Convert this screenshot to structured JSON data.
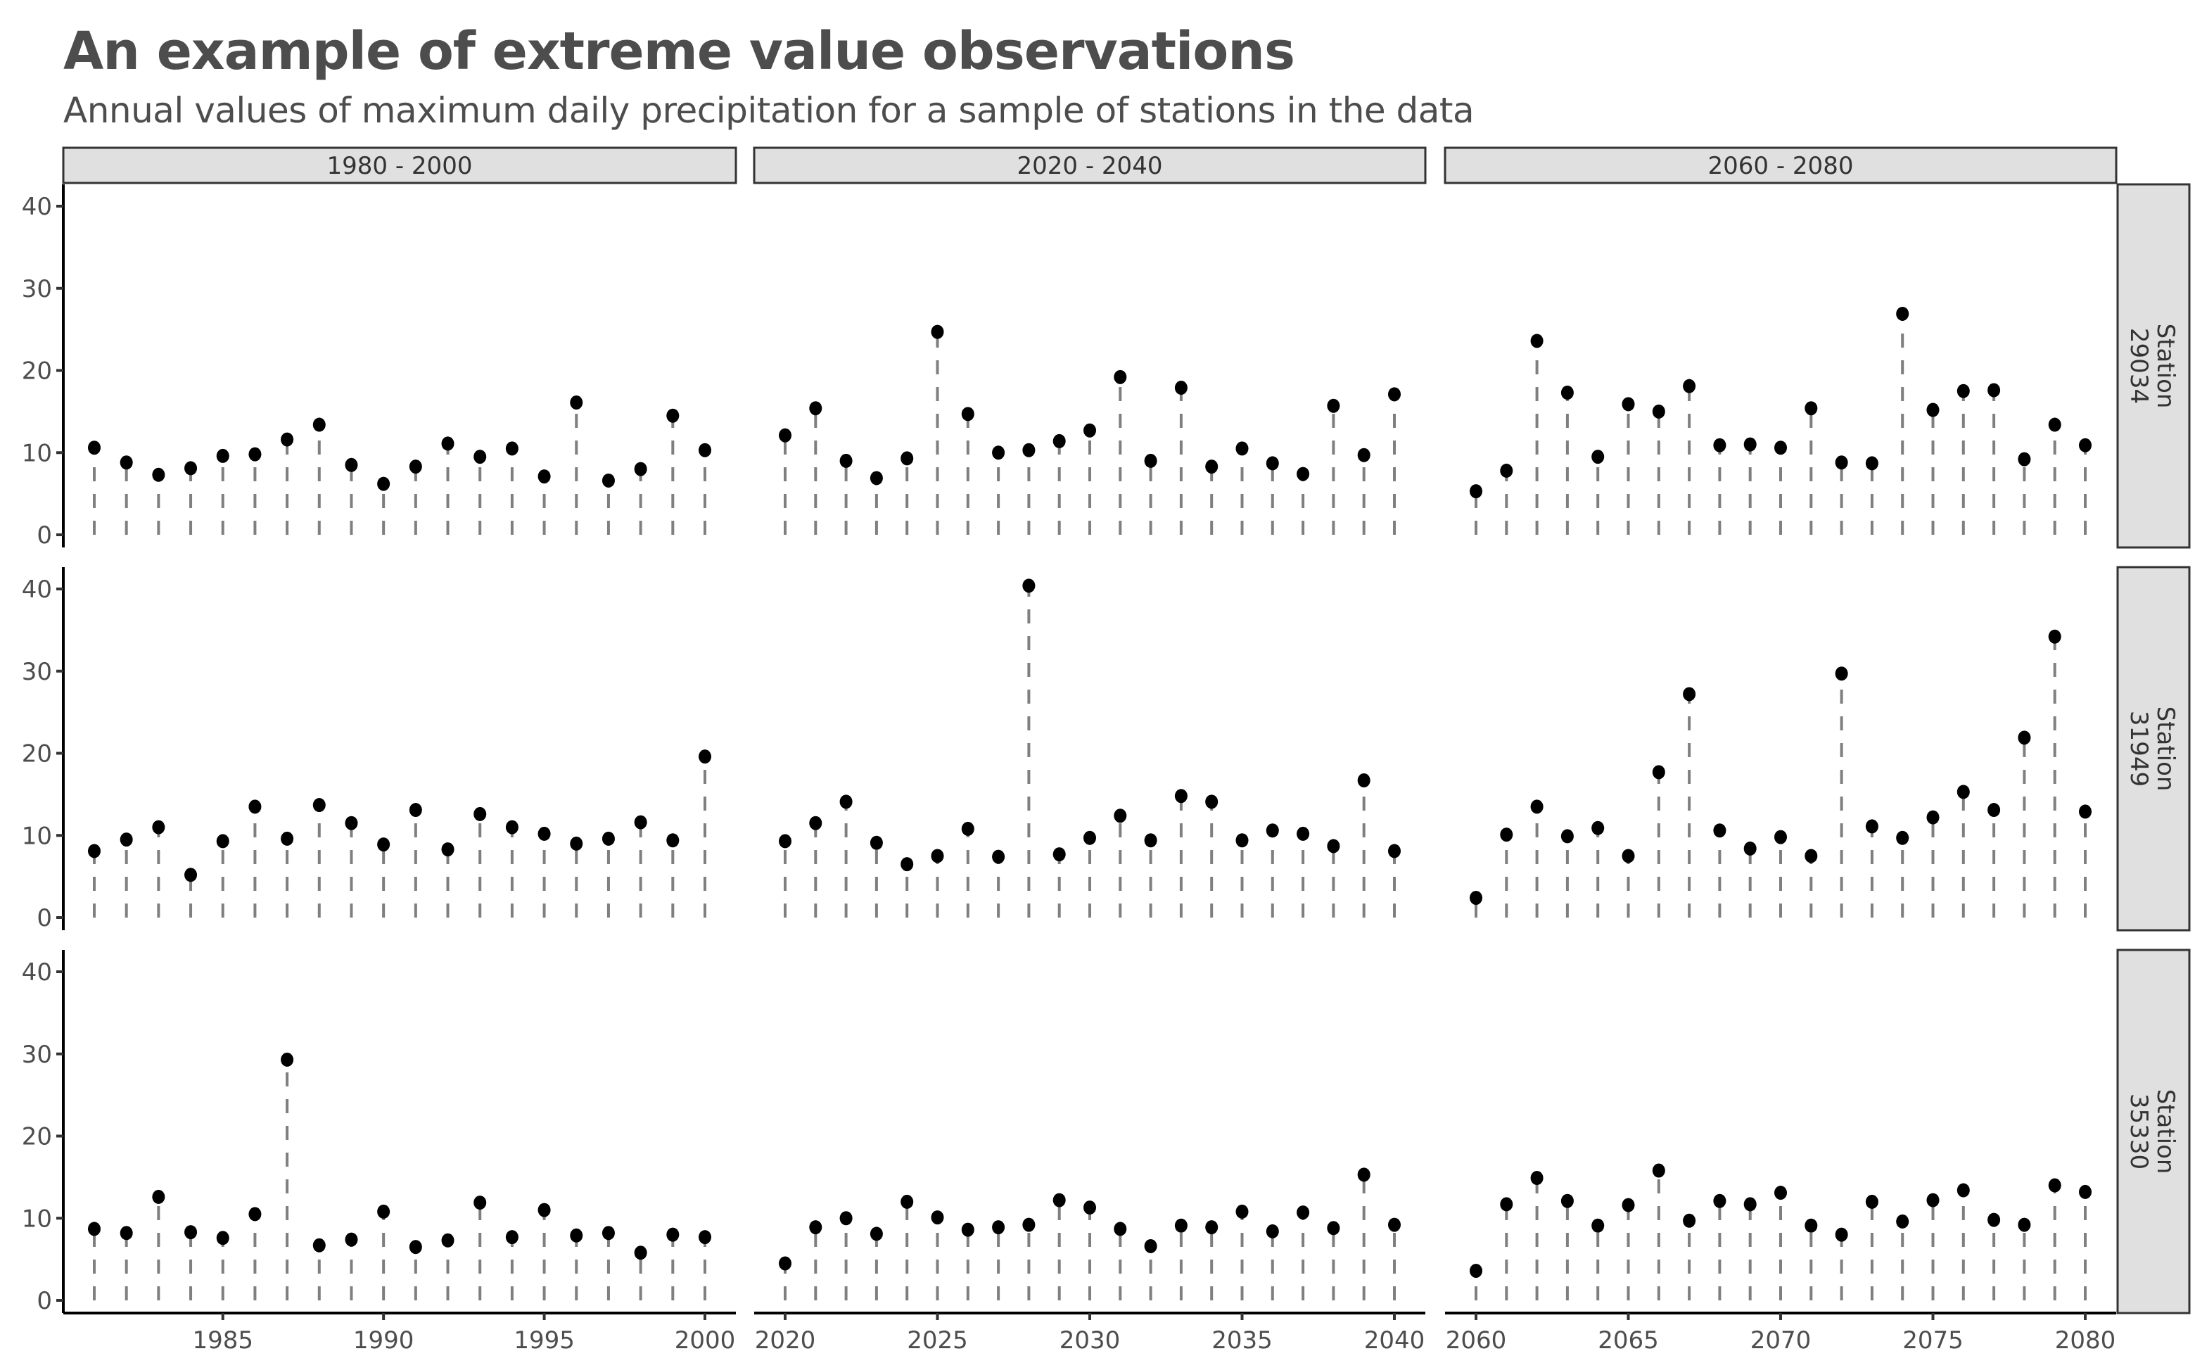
{
  "chart_data": {
    "type": "scatter",
    "subtype": "lollipop-facet-grid",
    "title": "An example of extreme value observations",
    "subtitle": "Annual values of maximum daily precipitation for a sample of stations in the data",
    "xlabel": "",
    "ylabel": "",
    "ylim": [
      0,
      40
    ],
    "y_ticks": [
      "0",
      "10",
      "20",
      "30",
      "40"
    ],
    "grid": false,
    "legend": "none",
    "col_facets": [
      {
        "label": "1980 - 2000",
        "xlim": [
          1981,
          2000
        ],
        "x_ticks": [
          "1985",
          "1990",
          "1995",
          "2000"
        ],
        "x_start": 1981
      },
      {
        "label": "2020 - 2040",
        "xlim": [
          2020,
          2040
        ],
        "x_ticks": [
          "2020",
          "2025",
          "2030",
          "2035",
          "2040"
        ],
        "x_start": 2020
      },
      {
        "label": "2060 - 2080",
        "xlim": [
          2060,
          2080
        ],
        "x_ticks": [
          "2060",
          "2065",
          "2070",
          "2075",
          "2080"
        ],
        "x_start": 2060
      }
    ],
    "row_facets": [
      {
        "label_line1": "Station",
        "label_line2": "29034",
        "series": [
          [
            10.6,
            8.8,
            7.3,
            8.1,
            9.6,
            9.8,
            11.6,
            13.4,
            8.5,
            6.2,
            8.3,
            11.1,
            9.5,
            10.5,
            7.1,
            16.1,
            6.6,
            8.0,
            14.5,
            10.3
          ],
          [
            12.1,
            15.4,
            9.0,
            6.9,
            9.3,
            24.7,
            14.7,
            10.0,
            10.3,
            11.4,
            12.7,
            19.2,
            9.0,
            17.9,
            8.3,
            10.5,
            8.7,
            7.4,
            15.7,
            9.7,
            17.1
          ],
          [
            5.3,
            7.8,
            23.6,
            17.3,
            9.5,
            15.9,
            15.0,
            18.1,
            10.9,
            11.0,
            10.6,
            15.4,
            8.8,
            8.7,
            26.9,
            15.2,
            17.5,
            17.6,
            9.2,
            13.4,
            10.9
          ]
        ]
      },
      {
        "label_line1": "Station",
        "label_line2": "31949",
        "series": [
          [
            8.1,
            9.5,
            11.0,
            5.2,
            9.3,
            13.5,
            9.6,
            13.7,
            11.5,
            8.9,
            13.1,
            8.3,
            12.6,
            11.0,
            10.2,
            9.0,
            9.6,
            11.6,
            9.4,
            19.6
          ],
          [
            9.3,
            11.5,
            14.1,
            9.1,
            6.5,
            7.5,
            10.8,
            7.4,
            40.4,
            7.7,
            9.7,
            12.4,
            9.4,
            14.8,
            14.1,
            9.4,
            10.6,
            10.2,
            8.7,
            16.7,
            8.1
          ],
          [
            2.4,
            10.1,
            13.5,
            9.9,
            10.9,
            7.5,
            17.7,
            27.2,
            10.6,
            8.4,
            9.8,
            7.5,
            29.7,
            11.1,
            9.7,
            12.2,
            15.3,
            13.1,
            21.9,
            34.2,
            12.9
          ]
        ]
      },
      {
        "label_line1": "Station",
        "label_line2": "35330",
        "series": [
          [
            8.7,
            8.2,
            12.6,
            8.3,
            7.6,
            10.5,
            29.3,
            6.7,
            7.4,
            10.8,
            6.5,
            7.3,
            11.9,
            7.7,
            11.0,
            7.9,
            8.2,
            5.8,
            8.0,
            7.7
          ],
          [
            4.5,
            8.9,
            10.0,
            8.1,
            12.0,
            10.1,
            8.6,
            8.9,
            9.2,
            12.2,
            11.3,
            8.7,
            6.6,
            9.1,
            8.9,
            10.8,
            8.4,
            10.7,
            8.8,
            15.3,
            9.2
          ],
          [
            3.6,
            11.7,
            14.9,
            12.1,
            9.1,
            11.6,
            15.8,
            9.7,
            12.1,
            11.7,
            13.1,
            9.1,
            8.0,
            12.0,
            9.6,
            12.2,
            13.4,
            9.8,
            9.2,
            14.0,
            13.2
          ]
        ]
      }
    ],
    "colors": {
      "point": "#000000",
      "segment": "#7f7f7f",
      "strip_fill": "#e0e0e0",
      "strip_border": "#333333",
      "title": "#4d4d4d"
    }
  }
}
